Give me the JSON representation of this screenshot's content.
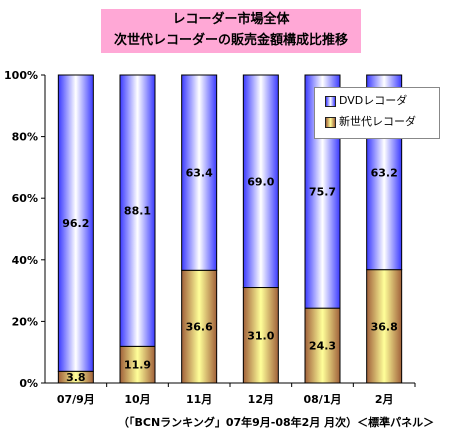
{
  "title": {
    "line1": "レコーダー市場全体",
    "line2": "次世代レコーダーの販売金額構成比推移"
  },
  "footnote": "（「BCNランキング」07年9月-08年2月 月次）＜標準パネル＞",
  "legend": [
    {
      "label": "DVDレコーダ",
      "series": 0
    },
    {
      "label": "新世代レコーダ",
      "series": 1
    }
  ],
  "colors": {
    "dvd": "#3a3aff",
    "next_gen": "#ffff99",
    "title_bg": "#ffa8d6"
  },
  "chart_data": {
    "type": "bar",
    "stacked": true,
    "percent": true,
    "categories": [
      "07/9月",
      "10月",
      "11月",
      "12月",
      "08/1月",
      "2月"
    ],
    "series": [
      {
        "name": "DVDレコーダ",
        "values": [
          96.2,
          88.1,
          63.4,
          69.0,
          75.7,
          63.2
        ]
      },
      {
        "name": "新世代レコーダ",
        "values": [
          3.8,
          11.9,
          36.6,
          31.0,
          24.3,
          36.8
        ]
      }
    ],
    "ylim": [
      0,
      100
    ],
    "yticks": [
      "0%",
      "20%",
      "40%",
      "60%",
      "80%",
      "100%"
    ],
    "legend_position": "top-right",
    "grid": false
  }
}
